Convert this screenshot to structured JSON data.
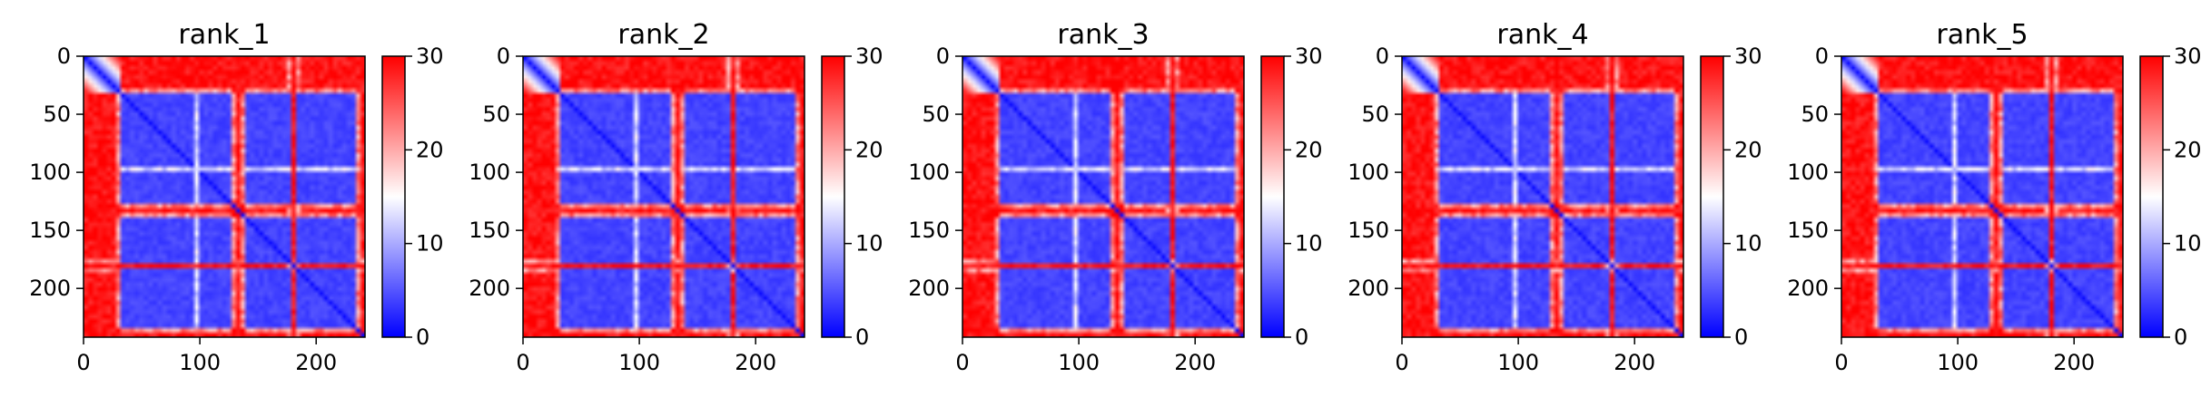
{
  "chart_data": [
    {
      "type": "heatmap",
      "title": "rank_1",
      "colormap": "bwr",
      "colorscale_colors": [
        "#0000ff",
        "#ffffff",
        "#ff0000"
      ],
      "clim": [
        0,
        30
      ],
      "matrix_size": 242,
      "xlim": [
        0,
        242
      ],
      "ylim": [
        242,
        0
      ],
      "x_ticks": [
        0,
        100,
        200
      ],
      "y_ticks": [
        0,
        50,
        100,
        150,
        200
      ],
      "colorbar_ticks": [
        0,
        10,
        20,
        30
      ],
      "domains": [
        [
          30,
          128
        ],
        [
          138,
          178
        ],
        [
          184,
          236
        ]
      ],
      "domain_gaps": [
        63,
        98,
        128,
        183
      ],
      "xlabel": "",
      "ylabel": ""
    },
    {
      "type": "heatmap",
      "title": "rank_2",
      "colormap": "bwr",
      "colorscale_colors": [
        "#0000ff",
        "#ffffff",
        "#ff0000"
      ],
      "clim": [
        0,
        30
      ],
      "matrix_size": 242,
      "xlim": [
        0,
        242
      ],
      "ylim": [
        242,
        0
      ],
      "x_ticks": [
        0,
        100,
        200
      ],
      "y_ticks": [
        0,
        50,
        100,
        150,
        200
      ],
      "colorbar_ticks": [
        0,
        10,
        20,
        30
      ],
      "domains": [
        [
          30,
          128
        ],
        [
          138,
          178
        ],
        [
          184,
          236
        ]
      ],
      "domain_gaps": [
        63,
        98,
        128,
        183
      ],
      "xlabel": "",
      "ylabel": ""
    },
    {
      "type": "heatmap",
      "title": "rank_3",
      "colormap": "bwr",
      "colorscale_colors": [
        "#0000ff",
        "#ffffff",
        "#ff0000"
      ],
      "clim": [
        0,
        30
      ],
      "matrix_size": 242,
      "xlim": [
        0,
        242
      ],
      "ylim": [
        242,
        0
      ],
      "x_ticks": [
        0,
        100,
        200
      ],
      "y_ticks": [
        0,
        50,
        100,
        150,
        200
      ],
      "colorbar_ticks": [
        0,
        10,
        20,
        30
      ],
      "domains": [
        [
          30,
          128
        ],
        [
          138,
          178
        ],
        [
          184,
          236
        ]
      ],
      "domain_gaps": [
        63,
        98,
        128,
        183
      ],
      "xlabel": "",
      "ylabel": ""
    },
    {
      "type": "heatmap",
      "title": "rank_4",
      "colormap": "bwr",
      "colorscale_colors": [
        "#0000ff",
        "#ffffff",
        "#ff0000"
      ],
      "clim": [
        0,
        30
      ],
      "matrix_size": 242,
      "xlim": [
        0,
        242
      ],
      "ylim": [
        242,
        0
      ],
      "x_ticks": [
        0,
        100,
        200
      ],
      "y_ticks": [
        0,
        50,
        100,
        150,
        200
      ],
      "colorbar_ticks": [
        0,
        10,
        20,
        30
      ],
      "domains": [
        [
          30,
          128
        ],
        [
          138,
          178
        ],
        [
          184,
          236
        ]
      ],
      "domain_gaps": [
        63,
        98,
        128,
        183
      ],
      "xlabel": "",
      "ylabel": ""
    },
    {
      "type": "heatmap",
      "title": "rank_5",
      "colormap": "bwr",
      "colorscale_colors": [
        "#0000ff",
        "#ffffff",
        "#ff0000"
      ],
      "clim": [
        0,
        30
      ],
      "matrix_size": 242,
      "xlim": [
        0,
        242
      ],
      "ylim": [
        242,
        0
      ],
      "x_ticks": [
        0,
        100,
        200
      ],
      "y_ticks": [
        0,
        50,
        100,
        150,
        200
      ],
      "colorbar_ticks": [
        0,
        10,
        20,
        30
      ],
      "domains": [
        [
          30,
          128
        ],
        [
          138,
          178
        ],
        [
          184,
          236
        ]
      ],
      "domain_gaps": [
        63,
        98,
        128,
        183
      ],
      "xlabel": "",
      "ylabel": ""
    }
  ]
}
